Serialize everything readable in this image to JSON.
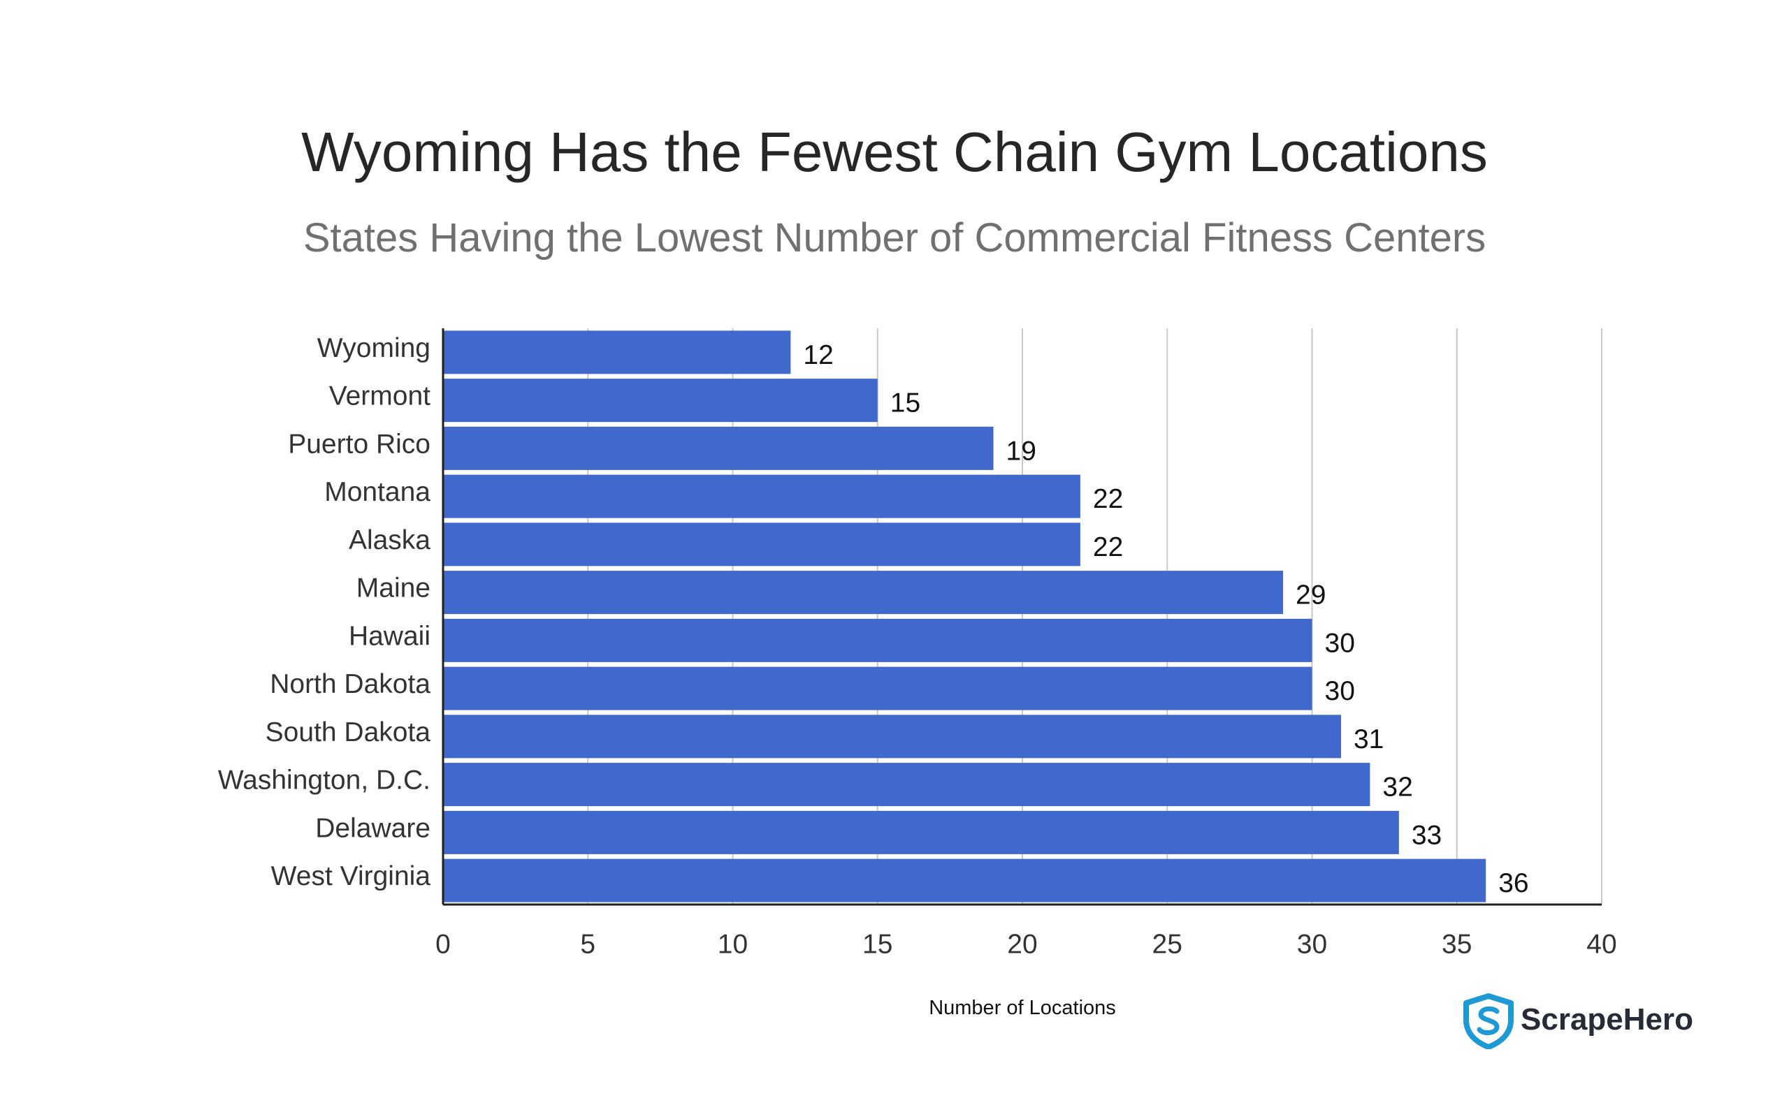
{
  "chart_data": {
    "type": "bar",
    "orientation": "horizontal",
    "title": "Wyoming Has the Fewest Chain Gym Locations",
    "subtitle": "States Having the Lowest Number of Commercial Fitness Centers",
    "xlabel": "Number of Locations",
    "ylabel": "",
    "categories": [
      "Wyoming",
      "Vermont",
      "Puerto Rico",
      "Montana",
      "Alaska",
      "Maine",
      "Hawaii",
      "North Dakota",
      "South Dakota",
      "Washington, D.C.",
      "Delaware",
      "West Virginia"
    ],
    "values": [
      12,
      15,
      19,
      22,
      22,
      29,
      30,
      30,
      31,
      32,
      33,
      36
    ],
    "xlim": [
      0,
      40
    ],
    "xticks": [
      0,
      5,
      10,
      15,
      20,
      25,
      30,
      35,
      40
    ],
    "grid": "vertical",
    "data_labels": true,
    "colors": {
      "bar": "#4169cd",
      "grid": "#c8c8c8",
      "axis": "#1f1f1f",
      "label": "#333333",
      "value_label": "#111111"
    }
  },
  "brand": {
    "name": "ScrapeHero",
    "icon": "shield-s-icon",
    "color": "#1d9ad6"
  }
}
